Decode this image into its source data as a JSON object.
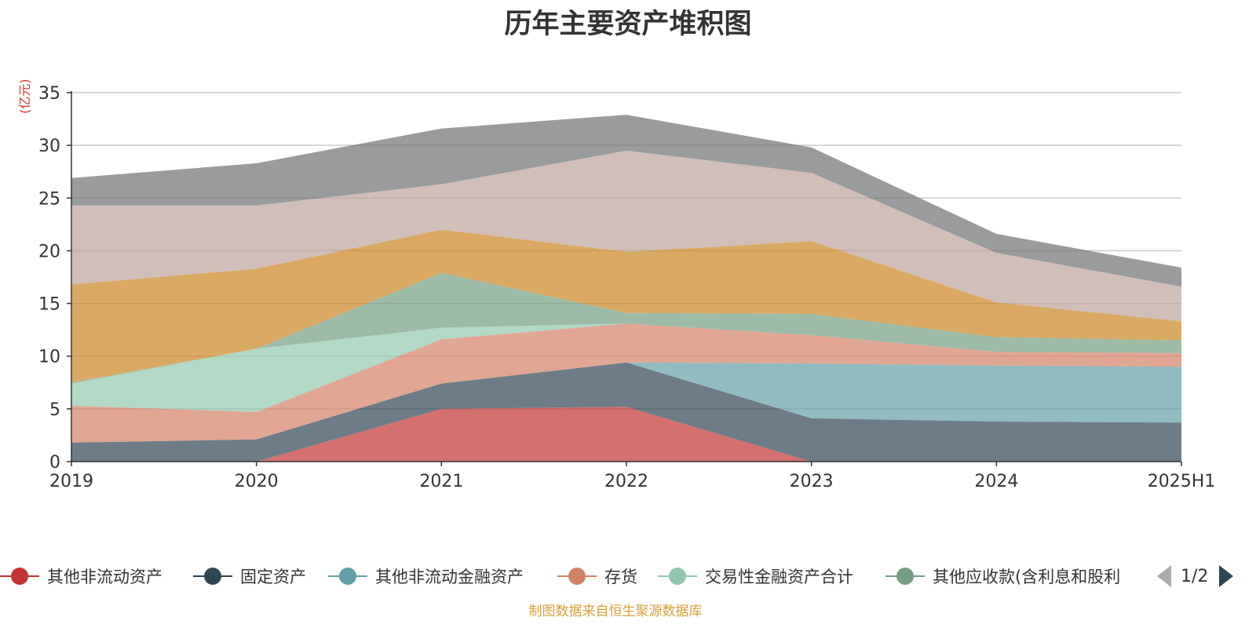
{
  "title": "历年主要资产堆积图",
  "unit_label": "(亿元)",
  "source_note": "制图数据来自恒生聚源数据库",
  "legend_pager": "1/2",
  "legend_visible": [
    "其他非流动资产",
    "固定资产",
    "其他非流动金融资产",
    "存货",
    "交易性金融资产合计",
    "其他应收款(含利息和股利"
  ],
  "chart_data": {
    "type": "area",
    "stacked": true,
    "title": "历年主要资产堆积图",
    "ylabel": "(亿元)",
    "xlabel": "",
    "categories": [
      "2019",
      "2020",
      "2021",
      "2022",
      "2023",
      "2024",
      "2025H1"
    ],
    "ylim": [
      0,
      35
    ],
    "yticks": [
      0,
      5,
      10,
      15,
      20,
      25,
      30,
      35
    ],
    "grid": true,
    "legend_position": "bottom",
    "series": [
      {
        "name": "其他非流动资产",
        "color": "#c23531",
        "values": [
          0,
          0,
          5.0,
          5.2,
          0,
          0,
          0
        ]
      },
      {
        "name": "固定资产",
        "color": "#2f4554",
        "values": [
          1.8,
          2.1,
          2.4,
          4.2,
          4.1,
          3.8,
          3.7
        ]
      },
      {
        "name": "其他非流动金融资产",
        "color": "#61a0a8",
        "values": [
          0,
          0,
          0,
          0,
          5.2,
          5.3,
          5.3
        ]
      },
      {
        "name": "存货",
        "color": "#d48265",
        "values": [
          3.5,
          2.6,
          4.2,
          3.7,
          2.7,
          1.3,
          1.3
        ]
      },
      {
        "name": "交易性金融资产合计",
        "color": "#91c7ae",
        "values": [
          2.1,
          6.0,
          1.1,
          0,
          0,
          0,
          0
        ]
      },
      {
        "name": "其他应收款(含利息和股利",
        "color": "#749f83",
        "values": [
          0.1,
          0,
          5.2,
          1.0,
          2.0,
          1.4,
          1.2
        ]
      },
      {
        "name": "",
        "color": "#ca8622",
        "values": [
          9.3,
          7.6,
          4.1,
          5.8,
          6.9,
          3.3,
          1.8
        ]
      },
      {
        "name": "",
        "color": "#bda29a",
        "values": [
          7.5,
          6.0,
          4.3,
          9.6,
          6.5,
          4.7,
          3.3
        ]
      },
      {
        "name": "",
        "color": "#6e7074",
        "values": [
          2.6,
          4.0,
          5.3,
          3.4,
          2.4,
          1.8,
          1.8
        ]
      }
    ]
  }
}
